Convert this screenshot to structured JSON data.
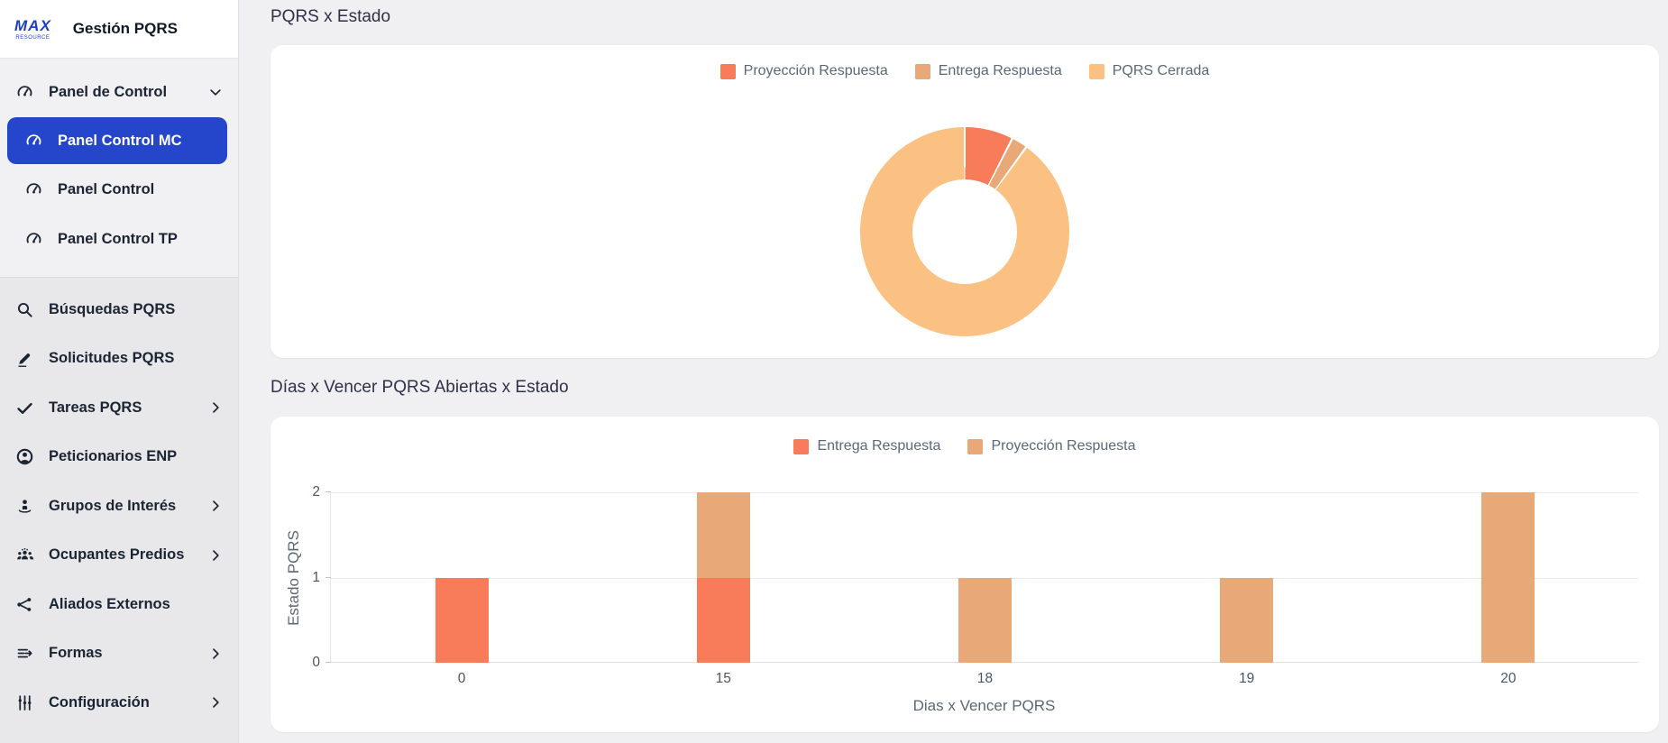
{
  "app": {
    "logo_primary": "MAX",
    "logo_secondary": "RESOURCE",
    "title": "Gestión PQRS"
  },
  "sidebar": {
    "group": {
      "label": "Panel de Control",
      "icon": "gauge-icon",
      "expanded": true,
      "items": [
        {
          "label": "Panel Control MC",
          "icon": "gauge-icon",
          "active": true
        },
        {
          "label": "Panel Control",
          "icon": "gauge-icon",
          "active": false
        },
        {
          "label": "Panel Control TP",
          "icon": "gauge-icon",
          "active": false
        }
      ]
    },
    "items": [
      {
        "label": "Búsquedas PQRS",
        "icon": "search-icon",
        "chevron": false
      },
      {
        "label": "Solicitudes PQRS",
        "icon": "pen-icon",
        "chevron": false
      },
      {
        "label": "Tareas PQRS",
        "icon": "check-icon",
        "chevron": true
      },
      {
        "label": "Peticionarios ENP",
        "icon": "person-circle-icon",
        "chevron": false
      },
      {
        "label": "Grupos de Interés",
        "icon": "person-group-icon",
        "chevron": true
      },
      {
        "label": "Ocupantes Predios",
        "icon": "people-icon",
        "chevron": true
      },
      {
        "label": "Aliados Externos",
        "icon": "share-icon",
        "chevron": false
      },
      {
        "label": "Formas",
        "icon": "form-lines-icon",
        "chevron": true
      },
      {
        "label": "Configuración",
        "icon": "sliders-icon",
        "chevron": true
      }
    ]
  },
  "sections": [
    {
      "title": "PQRS x Estado"
    },
    {
      "title": "Días x Vencer PQRS Abiertas x Estado"
    }
  ],
  "colors": {
    "accent_blue": "#2545cb",
    "series_red": "#f87c5a",
    "series_tan": "#e8a877",
    "series_light_orange": "#fac183"
  },
  "chart_data": [
    {
      "type": "pie",
      "subtype": "donut",
      "title": "PQRS x Estado",
      "labels": [
        "Proyección Respuesta",
        "Entrega Respuesta",
        "PQRS Cerrada"
      ],
      "values": [
        7.5,
        2.5,
        90
      ],
      "colors": [
        "#f87c5a",
        "#e8a877",
        "#fac183"
      ],
      "legend_position": "top"
    },
    {
      "type": "bar",
      "stacked": true,
      "title": "Días x Vencer PQRS Abiertas x Estado",
      "categories": [
        "0",
        "15",
        "18",
        "19",
        "20"
      ],
      "series": [
        {
          "name": "Entrega Respuesta",
          "color": "#f87c5a",
          "values": [
            1,
            1,
            0,
            0,
            0
          ]
        },
        {
          "name": "Proyección Respuesta",
          "color": "#e8a877",
          "values": [
            0,
            1,
            1,
            1,
            2
          ]
        }
      ],
      "xlabel": "Dias x Vencer PQRS",
      "ylabel": "Estado PQRS",
      "yticks": [
        0,
        1,
        2
      ],
      "ylim": [
        0,
        2
      ],
      "grid": true,
      "legend_position": "top"
    }
  ]
}
